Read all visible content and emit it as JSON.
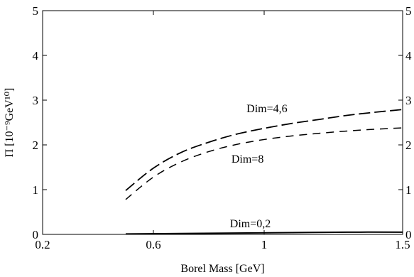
{
  "chart_data": {
    "type": "line",
    "xlabel": "Borel Mass [GeV]",
    "ylabel": "Π [10⁻⁹GeV¹⁰]",
    "xlim": [
      0.2,
      1.5
    ],
    "ylim": [
      0,
      5
    ],
    "xticks": [
      "0.2",
      "0.6",
      "1",
      "1.5"
    ],
    "xtick_values": [
      0.2,
      0.6,
      1.0,
      1.5
    ],
    "yticks": [
      "0",
      "1",
      "2",
      "3",
      "4",
      "5"
    ],
    "ytick_values": [
      0,
      1,
      2,
      3,
      4,
      5
    ],
    "grid": false,
    "series": [
      {
        "name": "Dim=4,6",
        "style": "long-dash",
        "x": [
          0.5,
          0.6,
          0.7,
          0.8,
          0.9,
          1.0,
          1.1,
          1.2,
          1.3,
          1.4,
          1.5
        ],
        "y": [
          0.98,
          1.48,
          1.83,
          2.06,
          2.24,
          2.37,
          2.48,
          2.57,
          2.66,
          2.73,
          2.79
        ]
      },
      {
        "name": "Dim=8",
        "style": "dash",
        "x": [
          0.5,
          0.6,
          0.7,
          0.8,
          0.9,
          1.0,
          1.1,
          1.2,
          1.3,
          1.4,
          1.5
        ],
        "y": [
          0.78,
          1.28,
          1.62,
          1.85,
          2.01,
          2.12,
          2.2,
          2.26,
          2.31,
          2.35,
          2.38
        ]
      },
      {
        "name": "Dim=0,2",
        "style": "solid",
        "x": [
          0.5,
          0.7,
          0.9,
          1.1,
          1.3,
          1.5
        ],
        "y": [
          0.01,
          0.02,
          0.03,
          0.04,
          0.05,
          0.05
        ]
      }
    ],
    "annotations": [
      {
        "text": "Dim=4,6",
        "x": 1.01,
        "y": 2.73
      },
      {
        "text": "Dim=8",
        "x": 0.94,
        "y": 1.6
      },
      {
        "text": "Dim=0,2",
        "x": 0.95,
        "y": 0.16
      }
    ]
  }
}
